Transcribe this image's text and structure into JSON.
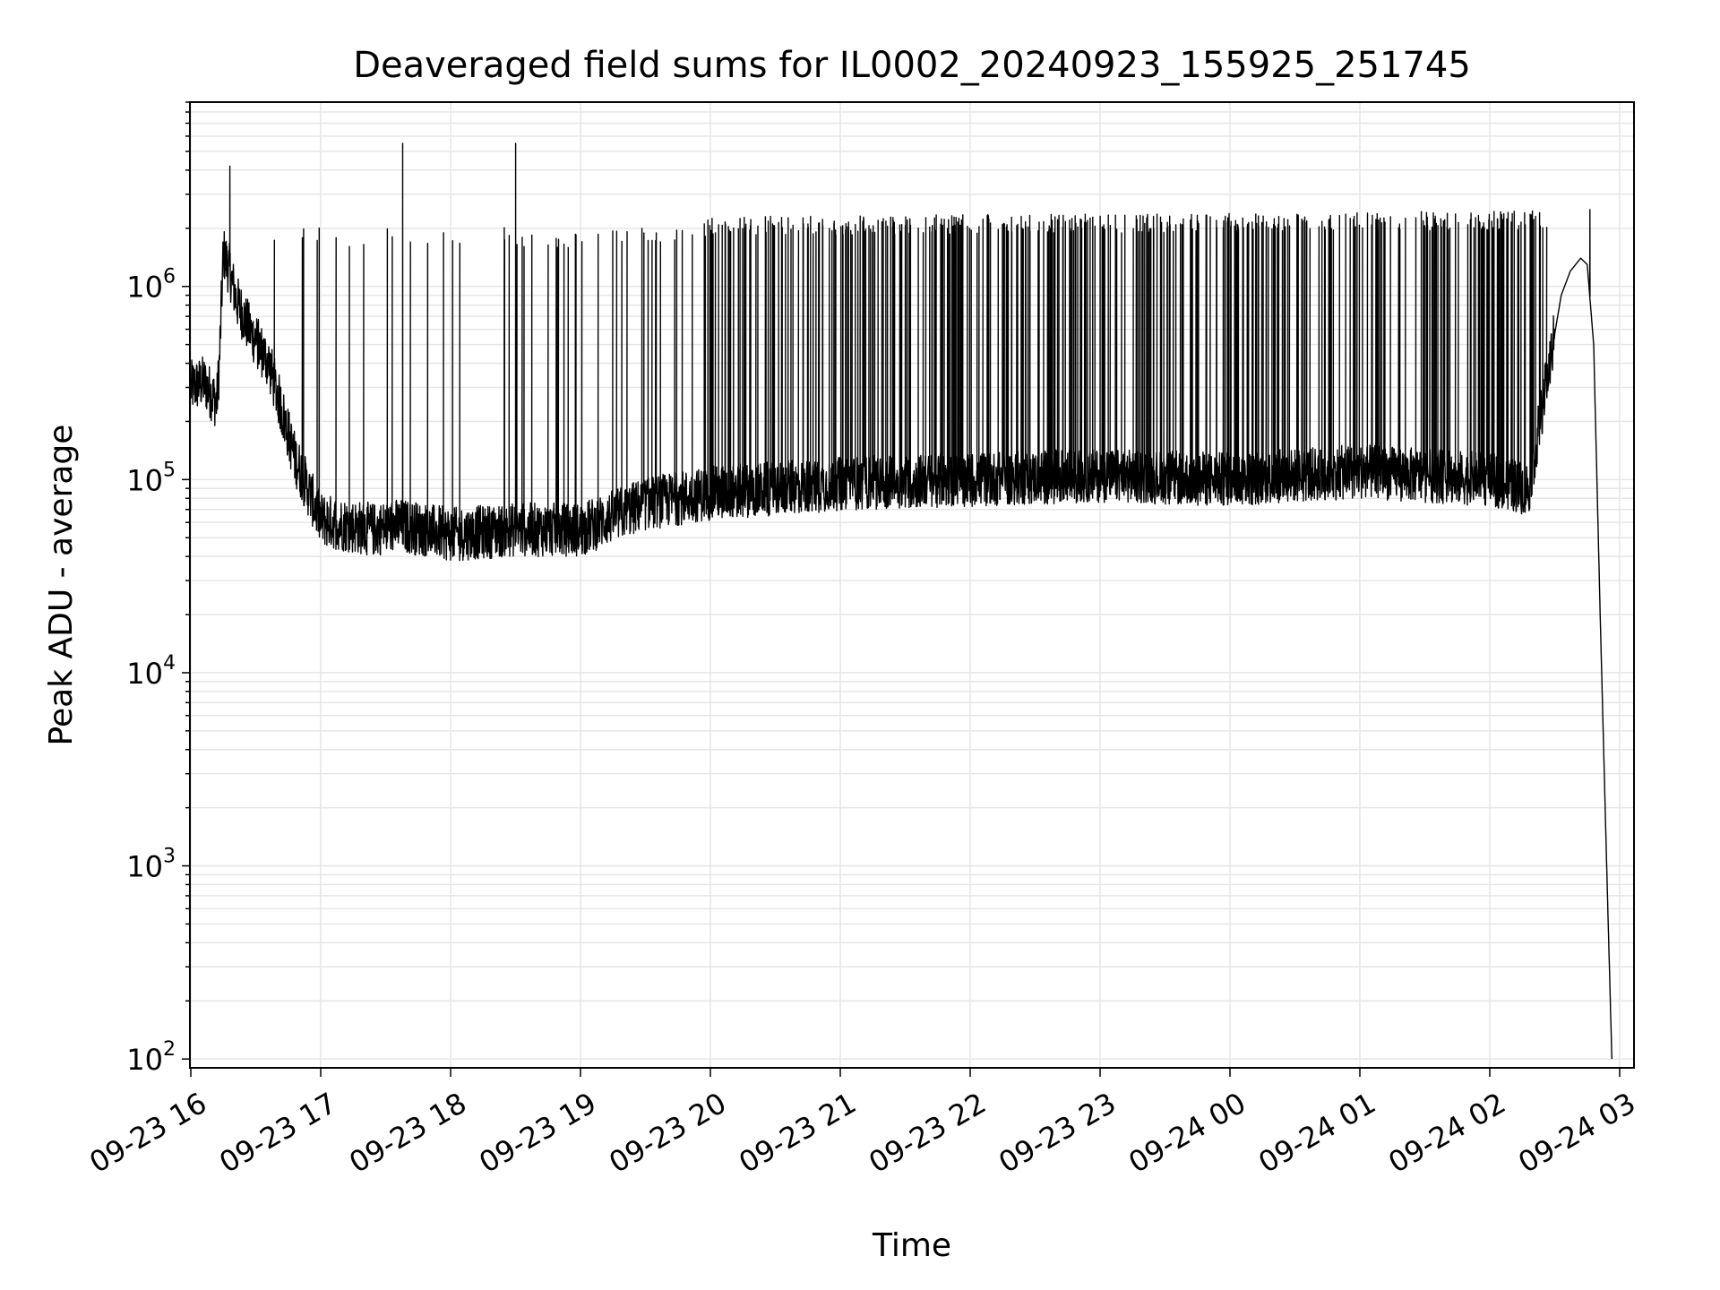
{
  "chart_data": {
    "type": "line",
    "title": "Deaveraged field sums for IL0002_20240923_155925_251745",
    "xlabel": "Time",
    "ylabel": "Peak ADU - average",
    "y_scale": "log",
    "ylim": [
      90,
      9000000
    ],
    "xlim": [
      "2024-09-23 16:00",
      "2024-09-24 03:00"
    ],
    "grid": true,
    "grid_minor": true,
    "line_color": "#000000",
    "grid_color": "#e6e6e6",
    "x_tick_labels": [
      "09-23 16",
      "09-23 17",
      "09-23 18",
      "09-23 19",
      "09-23 20",
      "09-23 21",
      "09-23 22",
      "09-23 23",
      "09-24 00",
      "09-24 01",
      "09-24 02",
      "09-24 03"
    ],
    "y_tick_labels": [
      {
        "base": "10",
        "exp": "2",
        "value": 100
      },
      {
        "base": "10",
        "exp": "3",
        "value": 1000
      },
      {
        "base": "10",
        "exp": "4",
        "value": 10000
      },
      {
        "base": "10",
        "exp": "5",
        "value": 100000
      },
      {
        "base": "10",
        "exp": "6",
        "value": 1000000
      }
    ],
    "x_hours": [
      0.0,
      0.1,
      0.2,
      0.22,
      0.25,
      0.3,
      0.35,
      0.45,
      0.6,
      0.8,
      1.0,
      1.2,
      1.4,
      1.6,
      1.8,
      2.0,
      2.5,
      3.0,
      3.5,
      4.0,
      5.0,
      6.0,
      7.0,
      8.0,
      9.0,
      10.0,
      10.3,
      10.55,
      10.62,
      10.7,
      10.75,
      10.8,
      10.85,
      10.9,
      10.94
    ],
    "y_baseline": [
      300000,
      320000,
      250000,
      400000,
      1500000,
      1200000,
      850000,
      600000,
      400000,
      130000,
      62000,
      58000,
      55000,
      58000,
      55000,
      52000,
      55000,
      55000,
      75000,
      85000,
      95000,
      100000,
      105000,
      100000,
      110000,
      100000,
      90000,
      900000,
      1200000,
      1400000,
      1300000,
      500000,
      20000,
      1000,
      100
    ],
    "spike_envelope": {
      "x_hours": [
        0.3,
        1.0,
        2.5,
        3.0,
        3.5,
        4.0,
        10.5
      ],
      "y": [
        2000000,
        1800000,
        1800000,
        1750000,
        1800000,
        2050000,
        2200000
      ]
    },
    "peaks": [
      {
        "x": 0.3,
        "y": 4200000
      },
      {
        "x": 1.63,
        "y": 5500000
      },
      {
        "x": 2.5,
        "y": 5500000
      },
      {
        "x": 10.77,
        "y": 2500000
      }
    ]
  }
}
